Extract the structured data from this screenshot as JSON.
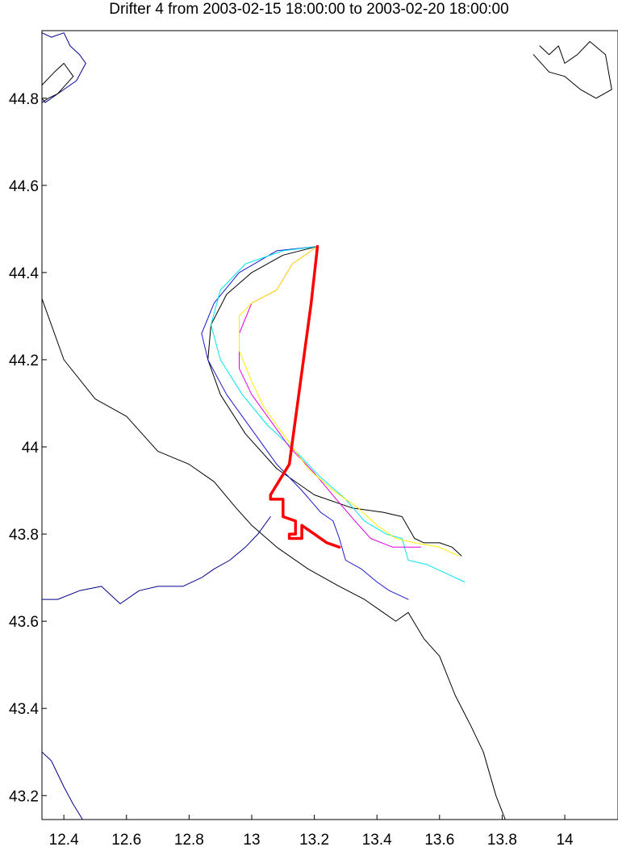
{
  "chart_data": {
    "type": "line",
    "title": "Drifter 4 from 2003-02-15 18:00:00 to 2003-02-20 18:00:00",
    "xlabel": "",
    "ylabel": "",
    "xlim": [
      12.33,
      14.17
    ],
    "ylim": [
      43.145,
      44.955
    ],
    "xticks": [
      12.4,
      12.6,
      12.8,
      13,
      13.2,
      13.4,
      13.6,
      13.8,
      14
    ],
    "xtick_labels": [
      "12.4",
      "12.6",
      "12.8",
      "13",
      "13.2",
      "13.4",
      "13.6",
      "13.8",
      "14"
    ],
    "yticks": [
      43.2,
      43.4,
      43.6,
      43.8,
      44,
      44.2,
      44.4,
      44.6,
      44.8
    ],
    "ytick_labels": [
      "43.2",
      "43.4",
      "43.6",
      "43.8",
      "44",
      "44.2",
      "44.4",
      "44.6",
      "44.8"
    ],
    "grid": false,
    "legend": "none",
    "colors": {
      "coastline": "#000000",
      "rivers": "#00008b",
      "observed": "#ff0000",
      "model_black": "#000000",
      "model_blue": "#1a1acd",
      "model_cyan": "#00e5ee",
      "model_magenta": "#dd00dd",
      "model_yellow": "#ffee00"
    },
    "series": [
      {
        "role": "coastline",
        "color": "#000000",
        "width": 1,
        "x": [
          12.33,
          12.4,
          12.5,
          12.6,
          12.7,
          12.8,
          12.88,
          12.95,
          13.0,
          13.08,
          13.18,
          13.28,
          13.36,
          13.42,
          13.46,
          13.5,
          13.55,
          13.6,
          13.65,
          13.7,
          13.74,
          13.78,
          13.81
        ],
        "y": [
          44.34,
          44.2,
          44.11,
          44.07,
          43.99,
          43.96,
          43.92,
          43.86,
          43.82,
          43.77,
          43.72,
          43.68,
          43.65,
          43.62,
          43.6,
          43.62,
          43.56,
          43.52,
          43.43,
          43.36,
          43.3,
          43.2,
          43.145
        ]
      },
      {
        "role": "river",
        "color": "#00008b",
        "width": 1,
        "x": [
          12.33,
          12.38,
          12.45,
          12.52,
          12.58,
          12.64,
          12.7,
          12.78,
          12.84,
          12.88,
          12.93,
          12.98,
          13.02,
          13.06
        ],
        "y": [
          43.65,
          43.65,
          43.67,
          43.68,
          43.64,
          43.67,
          43.68,
          43.68,
          43.7,
          43.72,
          43.74,
          43.77,
          43.8,
          43.84
        ]
      },
      {
        "role": "river",
        "color": "#00008b",
        "width": 1,
        "x": [
          12.33,
          12.36,
          12.4,
          12.43,
          12.46
        ],
        "y": [
          43.3,
          43.28,
          43.22,
          43.18,
          43.145
        ]
      },
      {
        "role": "coastline-detail",
        "color": "#00008b",
        "width": 1,
        "x": [
          12.33,
          12.36,
          12.4,
          12.42,
          12.45,
          12.47,
          12.44,
          12.4,
          12.36,
          12.34,
          12.33
        ],
        "y": [
          44.95,
          44.94,
          44.95,
          44.92,
          44.9,
          44.88,
          44.84,
          44.82,
          44.8,
          44.79,
          44.8
        ]
      },
      {
        "role": "coastline-detail",
        "color": "#000000",
        "width": 1,
        "x": [
          12.33,
          12.37,
          12.4,
          12.43,
          12.38,
          12.35,
          12.33
        ],
        "y": [
          44.83,
          44.86,
          44.88,
          44.85,
          44.81,
          44.8,
          44.79
        ]
      },
      {
        "role": "coastline-detail",
        "color": "#000000",
        "width": 1,
        "x": [
          13.9,
          13.95,
          14.0,
          14.05,
          14.1,
          14.15,
          14.13,
          14.08,
          14.04,
          14.0,
          13.98,
          13.95,
          13.92
        ],
        "y": [
          44.9,
          44.86,
          44.85,
          44.82,
          44.8,
          44.82,
          44.9,
          44.93,
          44.9,
          44.88,
          44.92,
          44.9,
          44.92
        ]
      },
      {
        "role": "model",
        "color": "#000000",
        "width": 1,
        "x": [
          13.21,
          13.1,
          13.0,
          12.92,
          12.87,
          12.86,
          12.9,
          12.98,
          13.08,
          13.2,
          13.32,
          13.42,
          13.48,
          13.52,
          13.55,
          13.6,
          13.64,
          13.67
        ],
        "y": [
          44.46,
          44.44,
          44.4,
          44.35,
          44.28,
          44.2,
          44.12,
          44.03,
          43.95,
          43.89,
          43.86,
          43.85,
          43.84,
          43.79,
          43.78,
          43.78,
          43.77,
          43.75
        ]
      },
      {
        "role": "model",
        "color": "#1a1acd",
        "width": 1,
        "x": [
          13.21,
          13.08,
          12.96,
          12.88,
          12.84,
          12.86,
          12.92,
          13.0,
          13.08,
          13.16,
          13.22,
          13.26,
          13.28,
          13.3,
          13.35,
          13.4,
          13.44,
          13.5
        ],
        "y": [
          44.46,
          44.45,
          44.4,
          44.33,
          44.26,
          44.2,
          44.12,
          44.04,
          43.96,
          43.9,
          43.85,
          43.83,
          43.79,
          43.74,
          43.72,
          43.69,
          43.67,
          43.65
        ]
      },
      {
        "role": "model",
        "color": "#00e5ee",
        "width": 1,
        "x": [
          13.21,
          13.1,
          12.98,
          12.9,
          12.87,
          12.9,
          12.97,
          13.05,
          13.14,
          13.22,
          13.3,
          13.36,
          13.43,
          13.48,
          13.5,
          13.56,
          13.62,
          13.68
        ],
        "y": [
          44.46,
          44.45,
          44.42,
          44.36,
          44.28,
          44.2,
          44.12,
          44.05,
          43.99,
          43.93,
          43.88,
          43.83,
          43.8,
          43.79,
          43.74,
          43.73,
          43.71,
          43.69
        ]
      },
      {
        "role": "model",
        "color": "#dd00dd",
        "width": 1,
        "x": [
          13.21,
          13.13,
          13.08,
          13.0,
          12.96,
          12.96,
          13.0,
          13.06,
          13.12,
          13.2,
          13.27,
          13.33,
          13.38,
          13.45,
          13.54
        ],
        "y": [
          44.46,
          44.42,
          44.36,
          44.33,
          44.26,
          44.18,
          44.12,
          44.06,
          44.0,
          43.94,
          43.88,
          43.83,
          43.79,
          43.77,
          43.77
        ]
      },
      {
        "role": "model",
        "color": "#ffee00",
        "width": 1,
        "x": [
          13.21,
          13.13,
          13.08,
          13.0,
          12.96,
          12.96,
          13.0,
          13.04,
          13.1,
          13.18,
          13.26,
          13.34,
          13.4,
          13.46,
          13.52,
          13.6,
          13.66
        ],
        "y": [
          44.46,
          44.42,
          44.36,
          44.33,
          44.3,
          44.22,
          44.15,
          44.09,
          44.03,
          43.95,
          43.9,
          43.86,
          43.82,
          43.79,
          43.78,
          43.77,
          43.75
        ]
      },
      {
        "role": "observed",
        "color": "#ff0000",
        "width": 3.5,
        "x": [
          13.21,
          13.19,
          13.12,
          13.06,
          13.06,
          13.1,
          13.1,
          13.14,
          13.14,
          13.12,
          13.12,
          13.16,
          13.16,
          13.18,
          13.2,
          13.24,
          13.28
        ],
        "y": [
          44.46,
          44.33,
          43.96,
          43.89,
          43.88,
          43.88,
          43.84,
          43.83,
          43.8,
          43.8,
          43.79,
          43.79,
          43.82,
          43.81,
          43.8,
          43.78,
          43.77
        ]
      }
    ]
  }
}
